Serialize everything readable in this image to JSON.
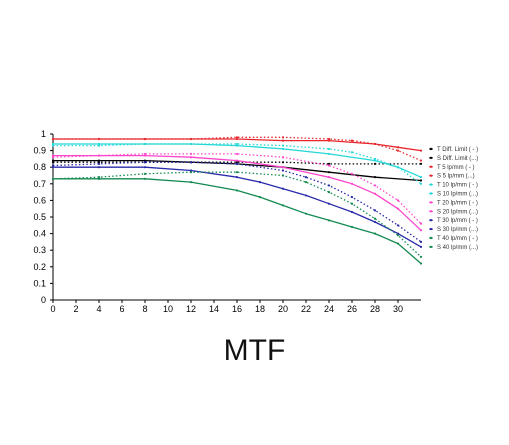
{
  "caption": "MTF",
  "chart_data": {
    "type": "line",
    "title": "",
    "xlabel": "",
    "ylabel": "",
    "xlim": [
      0,
      32
    ],
    "ylim": [
      0,
      1
    ],
    "xticks": [
      0,
      2,
      4,
      6,
      8,
      10,
      12,
      14,
      16,
      18,
      20,
      22,
      24,
      26,
      28,
      30
    ],
    "yticks": [
      0,
      0.1,
      0.2,
      0.3,
      0.4,
      0.5,
      0.6,
      0.7,
      0.8,
      0.9,
      1
    ],
    "ytick_labels": [
      "0",
      "0.1",
      "0.2",
      "0.3",
      "0.4",
      "0.5",
      "0.6",
      "0.7",
      "0.8",
      "0.9",
      "1"
    ],
    "grid": false,
    "legend_position": "right",
    "series": [
      {
        "name": "T Diff. Limit ( - )",
        "color": "#000000",
        "dash": "solid",
        "x": [
          0,
          4,
          8,
          12,
          16,
          20,
          24,
          28,
          32
        ],
        "y": [
          0.84,
          0.84,
          0.84,
          0.83,
          0.82,
          0.8,
          0.77,
          0.74,
          0.72
        ]
      },
      {
        "name": "S Diff. Limit (...)",
        "color": "#000000",
        "dash": "dotted",
        "x": [
          0,
          4,
          8,
          12,
          16,
          20,
          24,
          28,
          32
        ],
        "y": [
          0.83,
          0.83,
          0.83,
          0.83,
          0.83,
          0.83,
          0.82,
          0.82,
          0.82
        ]
      },
      {
        "name": "T 5 lp/mm ( - )",
        "color": "#e8262b",
        "dash": "solid",
        "x": [
          0,
          4,
          8,
          12,
          16,
          20,
          24,
          28,
          30,
          32
        ],
        "y": [
          0.97,
          0.97,
          0.97,
          0.97,
          0.97,
          0.96,
          0.96,
          0.94,
          0.92,
          0.9
        ]
      },
      {
        "name": "S 5 lp/mm (...)",
        "color": "#e8262b",
        "dash": "dotted",
        "x": [
          0,
          4,
          8,
          12,
          16,
          20,
          24,
          26,
          28,
          30,
          32
        ],
        "y": [
          0.97,
          0.97,
          0.97,
          0.97,
          0.98,
          0.98,
          0.97,
          0.96,
          0.94,
          0.9,
          0.84
        ]
      },
      {
        "name": "T 10 lp/mm ( - )",
        "color": "#22d8d8",
        "dash": "solid",
        "x": [
          0,
          4,
          8,
          12,
          16,
          20,
          24,
          28,
          30,
          32
        ],
        "y": [
          0.94,
          0.94,
          0.94,
          0.94,
          0.93,
          0.91,
          0.88,
          0.84,
          0.8,
          0.74
        ]
      },
      {
        "name": "S 10 lp/mm (...)",
        "color": "#22d8d8",
        "dash": "dotted",
        "x": [
          0,
          4,
          8,
          12,
          16,
          20,
          24,
          26,
          28,
          30,
          32
        ],
        "y": [
          0.93,
          0.93,
          0.94,
          0.94,
          0.94,
          0.93,
          0.91,
          0.89,
          0.85,
          0.8,
          0.7
        ]
      },
      {
        "name": "T 20 lp/mm ( - )",
        "color": "#ff44cc",
        "dash": "solid",
        "x": [
          0,
          4,
          8,
          12,
          16,
          20,
          24,
          26,
          28,
          30,
          32
        ],
        "y": [
          0.87,
          0.87,
          0.87,
          0.86,
          0.84,
          0.8,
          0.74,
          0.7,
          0.64,
          0.55,
          0.42
        ]
      },
      {
        "name": "S 20 lp/mm (...)",
        "color": "#ff44cc",
        "dash": "dotted",
        "x": [
          0,
          4,
          8,
          12,
          16,
          20,
          24,
          26,
          28,
          30,
          32
        ],
        "y": [
          0.86,
          0.87,
          0.88,
          0.88,
          0.88,
          0.86,
          0.81,
          0.76,
          0.69,
          0.6,
          0.46
        ]
      },
      {
        "name": "T 30 lp/mm ( - )",
        "color": "#2a2aaa",
        "dash": "solid",
        "x": [
          0,
          4,
          8,
          12,
          16,
          18,
          20,
          22,
          24,
          26,
          28,
          30,
          32
        ],
        "y": [
          0.8,
          0.8,
          0.8,
          0.78,
          0.74,
          0.71,
          0.67,
          0.63,
          0.58,
          0.53,
          0.47,
          0.4,
          0.32
        ]
      },
      {
        "name": "S 30 lp/mm (...)",
        "color": "#2a2aaa",
        "dash": "dotted",
        "x": [
          0,
          4,
          8,
          12,
          16,
          20,
          22,
          24,
          26,
          28,
          30,
          32
        ],
        "y": [
          0.81,
          0.82,
          0.83,
          0.83,
          0.82,
          0.78,
          0.74,
          0.69,
          0.62,
          0.54,
          0.45,
          0.35
        ]
      },
      {
        "name": "T 40 lp/mm ( - )",
        "color": "#138a50",
        "dash": "solid",
        "x": [
          0,
          4,
          8,
          12,
          16,
          18,
          20,
          22,
          24,
          26,
          28,
          30,
          32
        ],
        "y": [
          0.73,
          0.73,
          0.73,
          0.71,
          0.66,
          0.62,
          0.57,
          0.52,
          0.48,
          0.44,
          0.4,
          0.34,
          0.22
        ]
      },
      {
        "name": "S 40 lp/mm (...)",
        "color": "#138a50",
        "dash": "dotted",
        "x": [
          0,
          4,
          8,
          12,
          16,
          20,
          22,
          24,
          26,
          28,
          30,
          32
        ],
        "y": [
          0.73,
          0.74,
          0.76,
          0.77,
          0.77,
          0.75,
          0.71,
          0.65,
          0.58,
          0.49,
          0.39,
          0.26
        ]
      }
    ]
  }
}
